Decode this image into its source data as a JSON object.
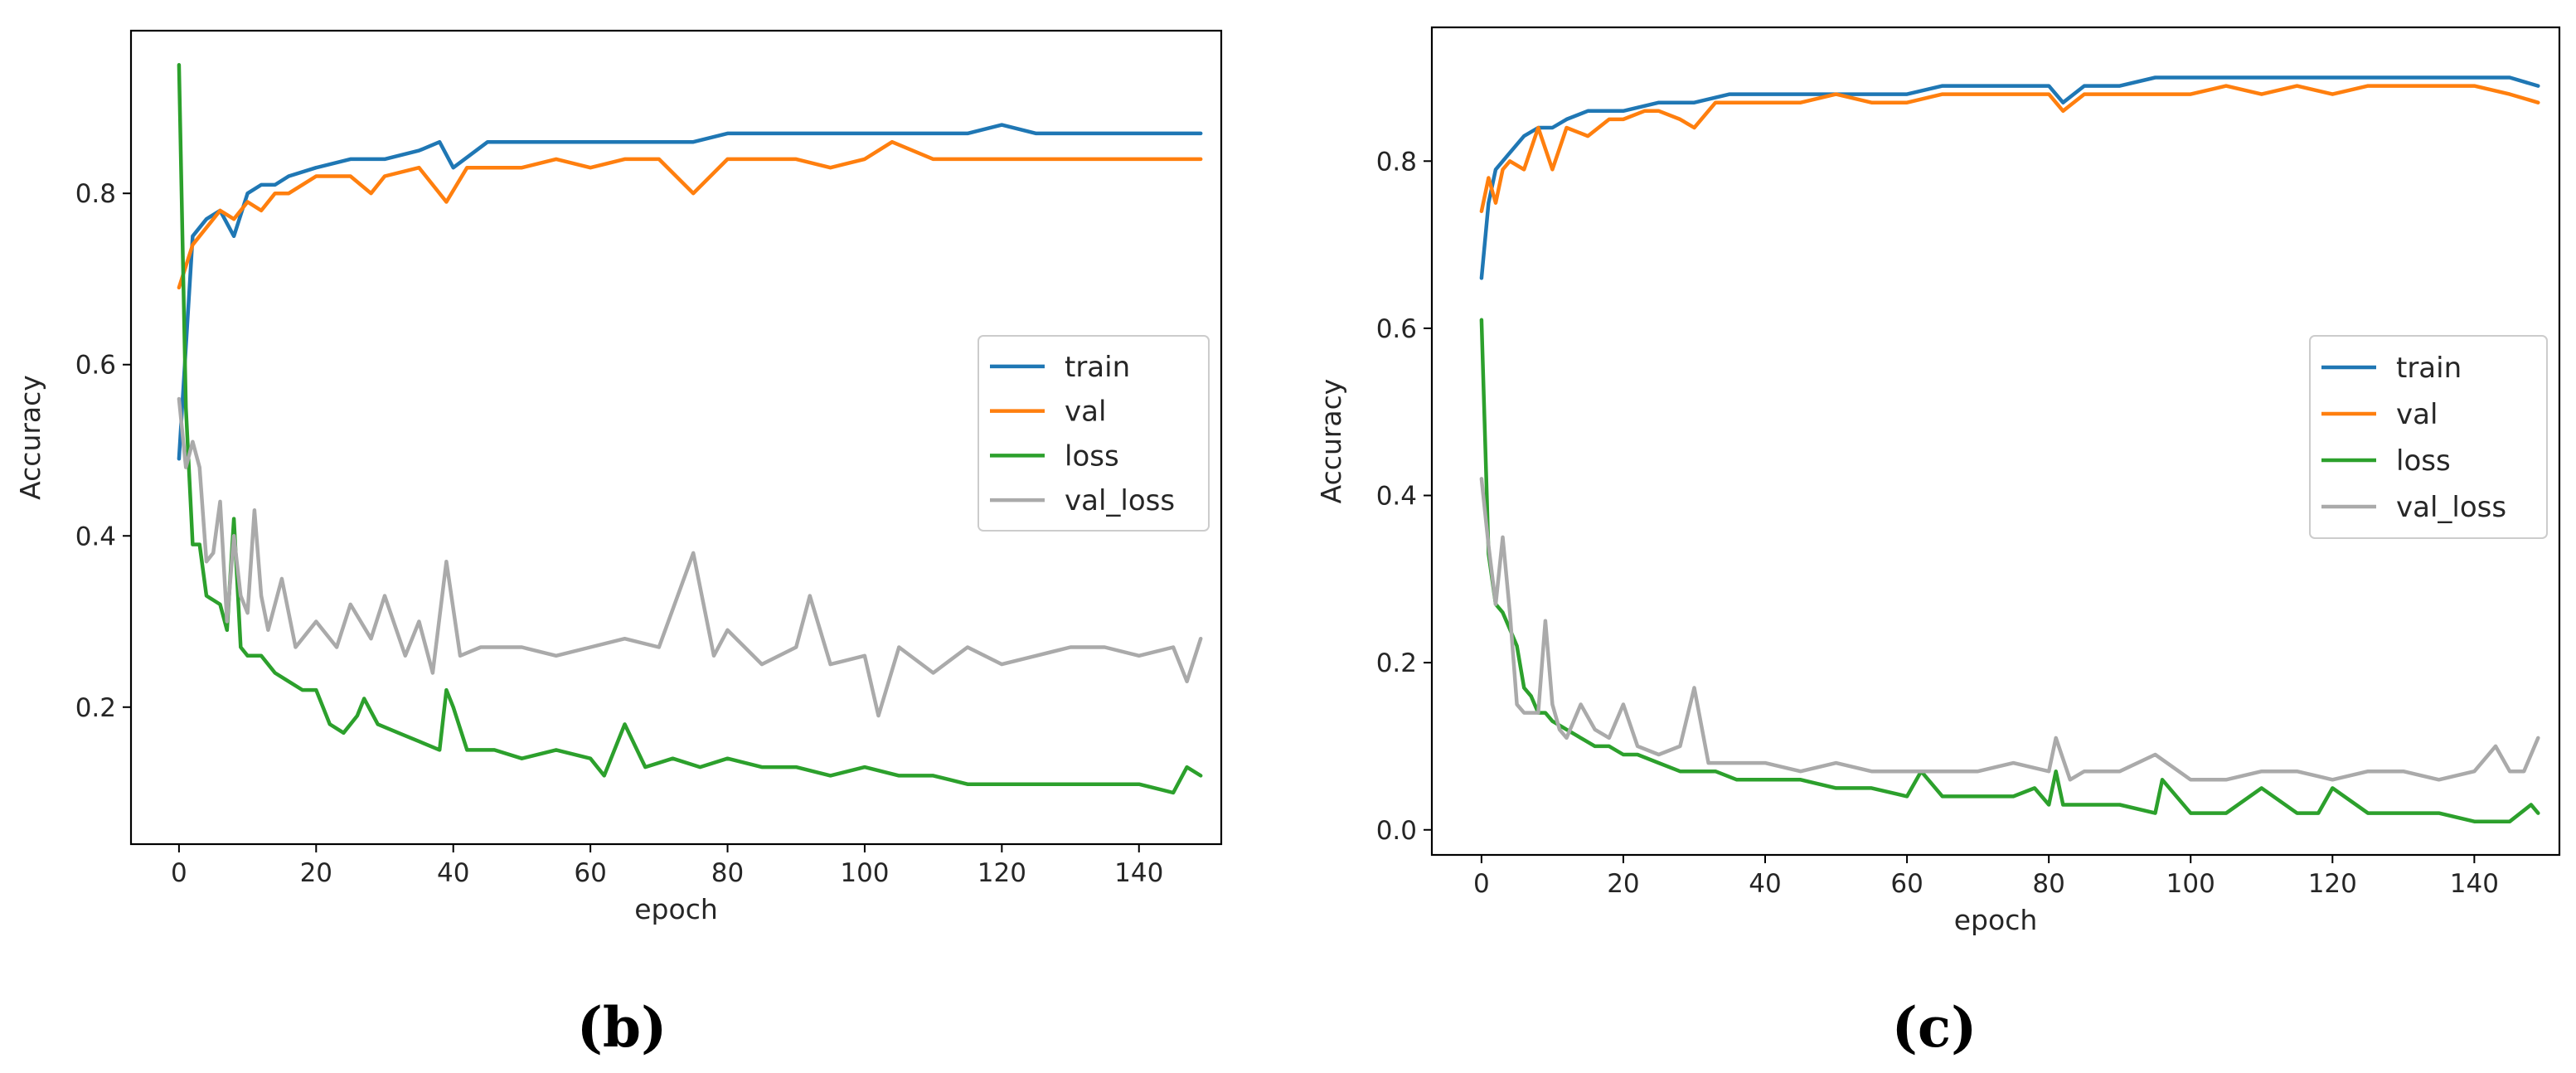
{
  "chart_data": [
    {
      "type": "line",
      "panel_label": "(b)",
      "xlabel": "epoch",
      "ylabel": "Accuracy",
      "xlim": [
        -7,
        152
      ],
      "ylim": [
        0.04,
        0.99
      ],
      "xticks": [
        0,
        20,
        40,
        60,
        80,
        100,
        120,
        140
      ],
      "xtick_labels": [
        "0",
        "20",
        "40",
        "60",
        "80",
        "100",
        "120",
        "140"
      ],
      "yticks": [
        0.2,
        0.4,
        0.6,
        0.8
      ],
      "ytick_labels": [
        "0.2",
        "0.4",
        "0.6",
        "0.8"
      ],
      "grid": false,
      "legend_position": "center-right",
      "series": [
        {
          "name": "train",
          "color": "#1f77b4",
          "x": [
            0,
            2,
            4,
            6,
            8,
            10,
            12,
            14,
            16,
            20,
            25,
            30,
            35,
            38,
            40,
            45,
            50,
            55,
            60,
            65,
            70,
            75,
            80,
            85,
            90,
            95,
            100,
            105,
            110,
            115,
            120,
            125,
            130,
            135,
            140,
            145,
            149
          ],
          "values": [
            0.49,
            0.75,
            0.77,
            0.78,
            0.75,
            0.8,
            0.81,
            0.81,
            0.82,
            0.83,
            0.84,
            0.84,
            0.85,
            0.86,
            0.83,
            0.86,
            0.86,
            0.86,
            0.86,
            0.86,
            0.86,
            0.86,
            0.87,
            0.87,
            0.87,
            0.87,
            0.87,
            0.87,
            0.87,
            0.87,
            0.88,
            0.87,
            0.87,
            0.87,
            0.87,
            0.87,
            0.87
          ]
        },
        {
          "name": "val",
          "color": "#ff7f0e",
          "x": [
            0,
            2,
            4,
            6,
            8,
            10,
            12,
            14,
            16,
            20,
            25,
            28,
            30,
            35,
            39,
            42,
            50,
            55,
            60,
            65,
            70,
            75,
            80,
            85,
            90,
            95,
            100,
            104,
            110,
            115,
            120,
            125,
            130,
            135,
            140,
            145,
            149
          ],
          "values": [
            0.69,
            0.74,
            0.76,
            0.78,
            0.77,
            0.79,
            0.78,
            0.8,
            0.8,
            0.82,
            0.82,
            0.8,
            0.82,
            0.83,
            0.79,
            0.83,
            0.83,
            0.84,
            0.83,
            0.84,
            0.84,
            0.8,
            0.84,
            0.84,
            0.84,
            0.83,
            0.84,
            0.86,
            0.84,
            0.84,
            0.84,
            0.84,
            0.84,
            0.84,
            0.84,
            0.84,
            0.84
          ]
        },
        {
          "name": "loss",
          "color": "#2ca02c",
          "x": [
            0,
            1,
            2,
            3,
            4,
            6,
            7,
            8,
            9,
            10,
            12,
            14,
            16,
            18,
            20,
            22,
            24,
            26,
            27,
            29,
            32,
            35,
            38,
            39,
            40,
            42,
            46,
            50,
            55,
            60,
            62,
            65,
            68,
            72,
            76,
            80,
            85,
            90,
            95,
            100,
            105,
            110,
            115,
            120,
            125,
            130,
            135,
            140,
            145,
            147,
            149
          ],
          "values": [
            0.95,
            0.55,
            0.39,
            0.39,
            0.33,
            0.32,
            0.29,
            0.42,
            0.27,
            0.26,
            0.26,
            0.24,
            0.23,
            0.22,
            0.22,
            0.18,
            0.17,
            0.19,
            0.21,
            0.18,
            0.17,
            0.16,
            0.15,
            0.22,
            0.2,
            0.15,
            0.15,
            0.14,
            0.15,
            0.14,
            0.12,
            0.18,
            0.13,
            0.14,
            0.13,
            0.14,
            0.13,
            0.13,
            0.12,
            0.13,
            0.12,
            0.12,
            0.11,
            0.11,
            0.11,
            0.11,
            0.11,
            0.11,
            0.1,
            0.13,
            0.12
          ]
        },
        {
          "name": "val_loss",
          "color": "#aaaaaa",
          "x": [
            0,
            1,
            2,
            3,
            4,
            5,
            6,
            7,
            8,
            9,
            10,
            11,
            12,
            13,
            15,
            17,
            20,
            23,
            25,
            28,
            30,
            33,
            35,
            37,
            39,
            41,
            44,
            50,
            55,
            60,
            65,
            70,
            75,
            78,
            80,
            85,
            90,
            92,
            95,
            100,
            102,
            105,
            110,
            115,
            120,
            125,
            130,
            135,
            140,
            145,
            147,
            149
          ],
          "values": [
            0.56,
            0.48,
            0.51,
            0.48,
            0.37,
            0.38,
            0.44,
            0.3,
            0.4,
            0.33,
            0.31,
            0.43,
            0.33,
            0.29,
            0.35,
            0.27,
            0.3,
            0.27,
            0.32,
            0.28,
            0.33,
            0.26,
            0.3,
            0.24,
            0.37,
            0.26,
            0.27,
            0.27,
            0.26,
            0.27,
            0.28,
            0.27,
            0.38,
            0.26,
            0.29,
            0.25,
            0.27,
            0.33,
            0.25,
            0.26,
            0.19,
            0.27,
            0.24,
            0.27,
            0.25,
            0.26,
            0.27,
            0.27,
            0.26,
            0.27,
            0.23,
            0.28
          ]
        }
      ]
    },
    {
      "type": "line",
      "panel_label": "(c)",
      "xlabel": "epoch",
      "ylabel": "Accuracy",
      "xlim": [
        -7,
        152
      ],
      "ylim": [
        -0.03,
        0.96
      ],
      "xticks": [
        0,
        20,
        40,
        60,
        80,
        100,
        120,
        140
      ],
      "xtick_labels": [
        "0",
        "20",
        "40",
        "60",
        "80",
        "100",
        "120",
        "140"
      ],
      "yticks": [
        0.0,
        0.2,
        0.4,
        0.6,
        0.8
      ],
      "ytick_labels": [
        "0.0",
        "0.2",
        "0.4",
        "0.6",
        "0.8"
      ],
      "grid": false,
      "legend_position": "center-right",
      "series": [
        {
          "name": "train",
          "color": "#1f77b4",
          "x": [
            0,
            1,
            2,
            4,
            6,
            8,
            10,
            12,
            15,
            20,
            25,
            30,
            35,
            40,
            45,
            50,
            55,
            60,
            65,
            70,
            75,
            80,
            82,
            85,
            90,
            95,
            100,
            105,
            110,
            115,
            120,
            125,
            130,
            135,
            140,
            145,
            149
          ],
          "values": [
            0.66,
            0.75,
            0.79,
            0.81,
            0.83,
            0.84,
            0.84,
            0.85,
            0.86,
            0.86,
            0.87,
            0.87,
            0.88,
            0.88,
            0.88,
            0.88,
            0.88,
            0.88,
            0.89,
            0.89,
            0.89,
            0.89,
            0.87,
            0.89,
            0.89,
            0.9,
            0.9,
            0.9,
            0.9,
            0.9,
            0.9,
            0.9,
            0.9,
            0.9,
            0.9,
            0.9,
            0.89
          ]
        },
        {
          "name": "val",
          "color": "#ff7f0e",
          "x": [
            0,
            1,
            2,
            3,
            4,
            6,
            8,
            10,
            12,
            15,
            18,
            20,
            23,
            25,
            28,
            30,
            33,
            36,
            40,
            45,
            50,
            55,
            60,
            65,
            70,
            75,
            80,
            82,
            85,
            90,
            95,
            100,
            105,
            110,
            115,
            120,
            125,
            130,
            135,
            140,
            145,
            149
          ],
          "values": [
            0.74,
            0.78,
            0.75,
            0.79,
            0.8,
            0.79,
            0.84,
            0.79,
            0.84,
            0.83,
            0.85,
            0.85,
            0.86,
            0.86,
            0.85,
            0.84,
            0.87,
            0.87,
            0.87,
            0.87,
            0.88,
            0.87,
            0.87,
            0.88,
            0.88,
            0.88,
            0.88,
            0.86,
            0.88,
            0.88,
            0.88,
            0.88,
            0.89,
            0.88,
            0.89,
            0.88,
            0.89,
            0.89,
            0.89,
            0.89,
            0.88,
            0.87
          ]
        },
        {
          "name": "loss",
          "color": "#2ca02c",
          "x": [
            0,
            1,
            2,
            3,
            4,
            5,
            6,
            7,
            8,
            9,
            10,
            12,
            14,
            16,
            18,
            20,
            22,
            25,
            28,
            30,
            33,
            36,
            40,
            45,
            50,
            55,
            60,
            62,
            65,
            70,
            75,
            78,
            80,
            81,
            82,
            85,
            90,
            95,
            96,
            100,
            105,
            110,
            115,
            118,
            120,
            125,
            130,
            135,
            140,
            145,
            148,
            149
          ],
          "values": [
            0.61,
            0.33,
            0.27,
            0.26,
            0.24,
            0.22,
            0.17,
            0.16,
            0.14,
            0.14,
            0.13,
            0.12,
            0.11,
            0.1,
            0.1,
            0.09,
            0.09,
            0.08,
            0.07,
            0.07,
            0.07,
            0.06,
            0.06,
            0.06,
            0.05,
            0.05,
            0.04,
            0.07,
            0.04,
            0.04,
            0.04,
            0.05,
            0.03,
            0.07,
            0.03,
            0.03,
            0.03,
            0.02,
            0.06,
            0.02,
            0.02,
            0.05,
            0.02,
            0.02,
            0.05,
            0.02,
            0.02,
            0.02,
            0.01,
            0.01,
            0.03,
            0.02
          ]
        },
        {
          "name": "val_loss",
          "color": "#aaaaaa",
          "x": [
            0,
            1,
            2,
            3,
            4,
            5,
            6,
            7,
            8,
            9,
            10,
            11,
            12,
            14,
            16,
            18,
            20,
            22,
            25,
            28,
            30,
            32,
            35,
            40,
            45,
            50,
            55,
            60,
            65,
            70,
            75,
            80,
            81,
            83,
            85,
            90,
            95,
            100,
            105,
            110,
            115,
            120,
            125,
            130,
            135,
            140,
            143,
            145,
            147,
            149
          ],
          "values": [
            0.42,
            0.34,
            0.27,
            0.35,
            0.26,
            0.15,
            0.14,
            0.14,
            0.14,
            0.25,
            0.15,
            0.12,
            0.11,
            0.15,
            0.12,
            0.11,
            0.15,
            0.1,
            0.09,
            0.1,
            0.17,
            0.08,
            0.08,
            0.08,
            0.07,
            0.08,
            0.07,
            0.07,
            0.07,
            0.07,
            0.08,
            0.07,
            0.11,
            0.06,
            0.07,
            0.07,
            0.09,
            0.06,
            0.06,
            0.07,
            0.07,
            0.06,
            0.07,
            0.07,
            0.06,
            0.07,
            0.1,
            0.07,
            0.07,
            0.11
          ]
        }
      ]
    }
  ]
}
